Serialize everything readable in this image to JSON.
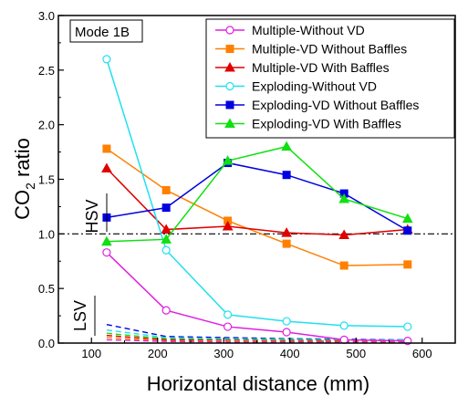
{
  "chart_data": {
    "type": "line",
    "xlabel_main": "Horizontal distance (mm)",
    "ylabel_pre": "CO",
    "ylabel_sub": "2",
    "ylabel_post": " ratio",
    "xlim": [
      50,
      650
    ],
    "ylim": [
      0,
      3.0
    ],
    "xticks": [
      100,
      200,
      300,
      400,
      500,
      600
    ],
    "yticks": [
      0.0,
      0.5,
      1.0,
      1.5,
      2.0,
      2.5,
      3.0
    ],
    "mode_label": "Mode 1B",
    "hsv_label": "HSV",
    "lsv_label": "LSV",
    "reference_line": 1.0,
    "legend_position": "top-right",
    "series": [
      {
        "name": "Multiple-Without VD",
        "color": "#e020e0",
        "marker": "circle-open",
        "x": [
          123,
          213,
          306,
          395,
          482,
          578
        ],
        "y": [
          0.83,
          0.3,
          0.15,
          0.1,
          0.03,
          0.02
        ]
      },
      {
        "name": "Multiple-VD Without Baffles",
        "color": "#ff8000",
        "marker": "square",
        "x": [
          123,
          213,
          306,
          395,
          482,
          578
        ],
        "y": [
          1.78,
          1.4,
          1.12,
          0.91,
          0.71,
          0.72
        ]
      },
      {
        "name": "Multiple-VD With Baffles",
        "color": "#e00000",
        "marker": "triangle",
        "x": [
          123,
          213,
          306,
          395,
          482,
          578
        ],
        "y": [
          1.6,
          1.04,
          1.07,
          1.01,
          0.99,
          1.04
        ]
      },
      {
        "name": "Exploding-Without VD",
        "color": "#20e0f0",
        "marker": "circle-open",
        "x": [
          123,
          213,
          306,
          395,
          482,
          578
        ],
        "y": [
          2.6,
          0.85,
          0.26,
          0.2,
          0.16,
          0.15
        ]
      },
      {
        "name": "Exploding-VD Without Baffles",
        "color": "#0000e0",
        "marker": "square",
        "x": [
          123,
          213,
          306,
          395,
          482,
          578
        ],
        "y": [
          1.15,
          1.24,
          1.65,
          1.54,
          1.37,
          1.03
        ]
      },
      {
        "name": "Exploding-VD With Baffles",
        "color": "#10e010",
        "marker": "triangle",
        "x": [
          123,
          213,
          306,
          395,
          482,
          578
        ],
        "y": [
          0.93,
          0.95,
          1.67,
          1.8,
          1.32,
          1.14
        ]
      }
    ],
    "dashed_series": [
      {
        "color": "#0000e0",
        "x": [
          123,
          213,
          306,
          395,
          482,
          578
        ],
        "y": [
          0.17,
          0.06,
          0.05,
          0.04,
          0.035,
          0.03
        ]
      },
      {
        "color": "#20e0f0",
        "x": [
          123,
          213,
          306,
          395,
          482,
          578
        ],
        "y": [
          0.12,
          0.05,
          0.04,
          0.035,
          0.03,
          0.03
        ]
      },
      {
        "color": "#10e010",
        "x": [
          123,
          213,
          306,
          395,
          482,
          578
        ],
        "y": [
          0.09,
          0.04,
          0.03,
          0.03,
          0.025,
          0.02
        ]
      },
      {
        "color": "#e00000",
        "x": [
          123,
          213,
          306,
          395,
          482,
          578
        ],
        "y": [
          0.07,
          0.03,
          0.025,
          0.02,
          0.02,
          0.015
        ]
      },
      {
        "color": "#ff8000",
        "x": [
          123,
          213,
          306,
          395,
          482,
          578
        ],
        "y": [
          0.05,
          0.02,
          0.02,
          0.015,
          0.015,
          0.01
        ]
      },
      {
        "color": "#e020e0",
        "x": [
          123,
          213,
          306,
          395,
          482,
          578
        ],
        "y": [
          0.03,
          0.015,
          0.01,
          0.01,
          0.01,
          0.005
        ]
      }
    ]
  }
}
